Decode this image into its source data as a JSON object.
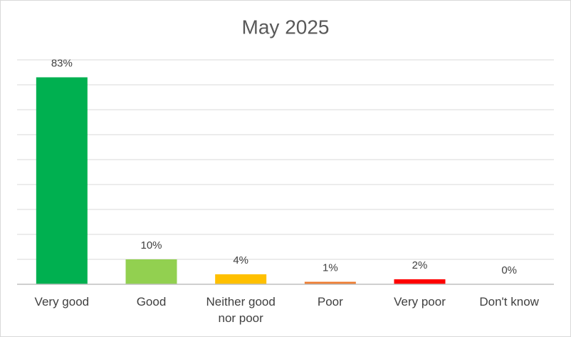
{
  "chart_data": {
    "type": "bar",
    "title": "May 2025",
    "categories": [
      "Very good",
      "Good",
      "Neither good nor poor",
      "Poor",
      "Very poor",
      "Don't know"
    ],
    "values": [
      83,
      10,
      4,
      1,
      2,
      0
    ],
    "value_labels": [
      "83%",
      "10%",
      "4%",
      "1%",
      "2%",
      "0%"
    ],
    "colors": [
      "#00b050",
      "#92d050",
      "#ffc000",
      "#ed7d31",
      "#ff0000",
      "#a5a5a5"
    ],
    "ylim": [
      0,
      90
    ],
    "yticks": [
      0,
      10,
      20,
      30,
      40,
      50,
      60,
      70,
      80,
      90
    ],
    "grid": true
  }
}
